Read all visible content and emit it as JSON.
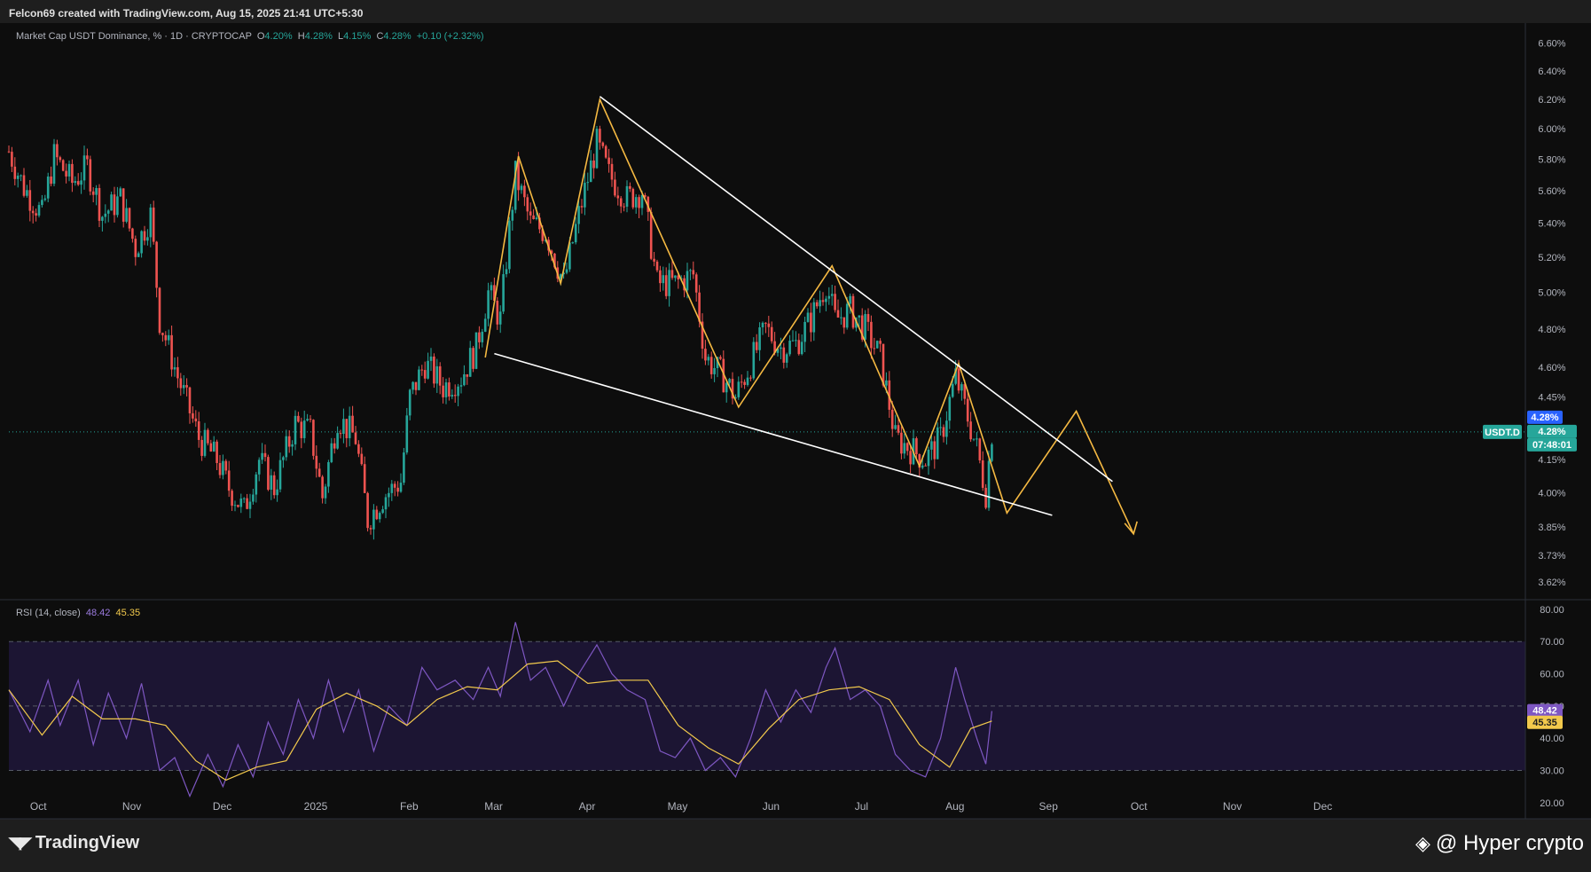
{
  "caption": "Felcon69 created with TradingView.com, Aug 15, 2025 21:41 UTC+5:30",
  "legend": {
    "title": "Market Cap USDT Dominance, % · 1D · CRYPTOCAP",
    "o_label": "O",
    "o": "4.20%",
    "h_label": "H",
    "h": "4.28%",
    "l_label": "L",
    "l": "4.15%",
    "c_label": "C",
    "c": "4.28%",
    "change": "+0.10 (+2.32%)"
  },
  "rsi_legend": {
    "title": "RSI (14, close)",
    "rsi": "48.42",
    "ma": "45.35"
  },
  "badges": {
    "price": "4.28%",
    "symbol": "USDT.D",
    "price2": "4.28%",
    "countdown": "07:48:01",
    "rsi": "48.42",
    "rsi_ma": "45.35"
  },
  "footer": {
    "brand": "TradingView",
    "credit": "@ Hyper  crypto"
  },
  "colors": {
    "up": "#26a69a",
    "down": "#ef5350",
    "rsi": "#7e57c2",
    "rsi_ma": "#f2c94c",
    "pattern": "#f5b942",
    "trend": "#ffffff",
    "bg": "#0d0d0d"
  },
  "chart_data": [
    {
      "type": "candlestick",
      "title": "Market Cap USDT Dominance, % · 1D · CRYPTOCAP",
      "xlabel": "",
      "ylabel": "",
      "x_ticks": [
        "Oct",
        "Nov",
        "Dec",
        "2025",
        "Feb",
        "Mar",
        "Apr",
        "May",
        "Jun",
        "Jul",
        "Aug",
        "Sep",
        "Oct",
        "Nov",
        "Dec"
      ],
      "y_ticks": [
        "6.60%",
        "6.40%",
        "6.20%",
        "6.00%",
        "5.80%",
        "5.60%",
        "5.40%",
        "5.20%",
        "5.00%",
        "4.80%",
        "4.60%",
        "4.45%",
        "4.15%",
        "4.00%",
        "3.85%",
        "3.73%",
        "3.62%"
      ],
      "y_scale": "log",
      "ylim": [
        3.55,
        6.75
      ],
      "grid": false,
      "last_close": 4.28,
      "close_path": [
        {
          "date": "2024-09-23",
          "close": 5.85
        },
        {
          "date": "2024-09-28",
          "close": 5.62
        },
        {
          "date": "2024-10-04",
          "close": 5.45
        },
        {
          "date": "2024-10-08",
          "close": 5.82
        },
        {
          "date": "2024-10-14",
          "close": 5.65
        },
        {
          "date": "2024-10-19",
          "close": 5.75
        },
        {
          "date": "2024-10-24",
          "close": 5.45
        },
        {
          "date": "2024-10-30",
          "close": 5.55
        },
        {
          "date": "2024-11-04",
          "close": 5.25
        },
        {
          "date": "2024-11-09",
          "close": 5.45
        },
        {
          "date": "2024-11-12",
          "close": 4.85
        },
        {
          "date": "2024-11-18",
          "close": 4.55
        },
        {
          "date": "2024-11-25",
          "close": 4.25
        },
        {
          "date": "2024-12-01",
          "close": 4.15
        },
        {
          "date": "2024-12-05",
          "close": 4.02
        },
        {
          "date": "2024-12-10",
          "close": 3.92
        },
        {
          "date": "2024-12-15",
          "close": 4.15
        },
        {
          "date": "2024-12-20",
          "close": 4.02
        },
        {
          "date": "2024-12-27",
          "close": 4.32
        },
        {
          "date": "2025-01-01",
          "close": 4.28
        },
        {
          "date": "2025-01-05",
          "close": 3.98
        },
        {
          "date": "2025-01-10",
          "close": 4.35
        },
        {
          "date": "2025-01-16",
          "close": 4.25
        },
        {
          "date": "2025-01-20",
          "close": 3.88
        },
        {
          "date": "2025-01-25",
          "close": 3.98
        },
        {
          "date": "2025-01-31",
          "close": 4.05
        },
        {
          "date": "2025-02-03",
          "close": 4.45
        },
        {
          "date": "2025-02-08",
          "close": 4.62
        },
        {
          "date": "2025-02-14",
          "close": 4.5
        },
        {
          "date": "2025-02-20",
          "close": 4.55
        },
        {
          "date": "2025-02-25",
          "close": 4.7
        },
        {
          "date": "2025-03-01",
          "close": 5.0
        },
        {
          "date": "2025-03-05",
          "close": 4.85
        },
        {
          "date": "2025-03-10",
          "close": 5.7
        },
        {
          "date": "2025-03-15",
          "close": 5.4
        },
        {
          "date": "2025-03-20",
          "close": 5.35
        },
        {
          "date": "2025-03-26",
          "close": 5.05
        },
        {
          "date": "2025-03-31",
          "close": 5.45
        },
        {
          "date": "2025-04-06",
          "close": 5.9
        },
        {
          "date": "2025-04-10",
          "close": 5.7
        },
        {
          "date": "2025-04-16",
          "close": 5.55
        },
        {
          "date": "2025-04-21",
          "close": 5.6
        },
        {
          "date": "2025-04-26",
          "close": 5.05
        },
        {
          "date": "2025-05-02",
          "close": 5.05
        },
        {
          "date": "2025-05-08",
          "close": 5.1
        },
        {
          "date": "2025-05-12",
          "close": 4.65
        },
        {
          "date": "2025-05-18",
          "close": 4.55
        },
        {
          "date": "2025-05-22",
          "close": 4.45
        },
        {
          "date": "2025-05-27",
          "close": 4.62
        },
        {
          "date": "2025-06-01",
          "close": 4.8
        },
        {
          "date": "2025-06-06",
          "close": 4.7
        },
        {
          "date": "2025-06-11",
          "close": 4.72
        },
        {
          "date": "2025-06-16",
          "close": 4.85
        },
        {
          "date": "2025-06-21",
          "close": 5.05
        },
        {
          "date": "2025-06-24",
          "close": 4.85
        },
        {
          "date": "2025-06-29",
          "close": 4.9
        },
        {
          "date": "2025-07-04",
          "close": 4.8
        },
        {
          "date": "2025-07-09",
          "close": 4.65
        },
        {
          "date": "2025-07-14",
          "close": 4.25
        },
        {
          "date": "2025-07-19",
          "close": 4.2
        },
        {
          "date": "2025-07-24",
          "close": 4.15
        },
        {
          "date": "2025-07-29",
          "close": 4.25
        },
        {
          "date": "2025-08-03",
          "close": 4.55
        },
        {
          "date": "2025-08-06",
          "close": 4.4
        },
        {
          "date": "2025-08-10",
          "close": 4.2
        },
        {
          "date": "2025-08-13",
          "close": 4.0
        },
        {
          "date": "2025-08-15",
          "close": 4.28
        }
      ],
      "annotations": {
        "pattern_zigzag": [
          {
            "date": "2025-02-28",
            "value": 4.65
          },
          {
            "date": "2025-03-11",
            "value": 5.82
          },
          {
            "date": "2025-03-25",
            "value": 5.05
          },
          {
            "date": "2025-04-07",
            "value": 6.2
          },
          {
            "date": "2025-05-23",
            "value": 4.4
          },
          {
            "date": "2025-06-23",
            "value": 5.15
          },
          {
            "date": "2025-07-22",
            "value": 4.12
          },
          {
            "date": "2025-08-04",
            "value": 4.62
          },
          {
            "date": "2025-08-20",
            "value": 3.91
          },
          {
            "date": "2025-09-12",
            "value": 4.38
          },
          {
            "date": "2025-10-01",
            "value": 3.82
          }
        ],
        "upper_trendline": [
          {
            "date": "2025-04-07",
            "value": 6.22
          },
          {
            "date": "2025-09-24",
            "value": 4.05
          }
        ],
        "lower_trendline": [
          {
            "date": "2025-03-03",
            "value": 4.67
          },
          {
            "date": "2025-09-04",
            "value": 3.9
          }
        ],
        "price_line": 4.28
      }
    },
    {
      "type": "line",
      "title": "RSI (14, close)",
      "xlabel": "",
      "ylabel": "",
      "y_ticks": [
        "80.00",
        "70.00",
        "60.00",
        "50.00",
        "40.00",
        "30.00",
        "20.00"
      ],
      "ylim": [
        15,
        83
      ],
      "bands": [
        30,
        50,
        70
      ],
      "series": [
        {
          "name": "RSI",
          "points": [
            {
              "date": "2024-09-23",
              "value": 55
            },
            {
              "date": "2024-09-30",
              "value": 42
            },
            {
              "date": "2024-10-06",
              "value": 58
            },
            {
              "date": "2024-10-10",
              "value": 44
            },
            {
              "date": "2024-10-16",
              "value": 58
            },
            {
              "date": "2024-10-21",
              "value": 38
            },
            {
              "date": "2024-10-26",
              "value": 54
            },
            {
              "date": "2024-11-01",
              "value": 40
            },
            {
              "date": "2024-11-06",
              "value": 57
            },
            {
              "date": "2024-11-12",
              "value": 30
            },
            {
              "date": "2024-11-17",
              "value": 34
            },
            {
              "date": "2024-11-22",
              "value": 22
            },
            {
              "date": "2024-11-28",
              "value": 35
            },
            {
              "date": "2024-12-03",
              "value": 25
            },
            {
              "date": "2024-12-08",
              "value": 38
            },
            {
              "date": "2024-12-13",
              "value": 28
            },
            {
              "date": "2024-12-18",
              "value": 45
            },
            {
              "date": "2024-12-23",
              "value": 35
            },
            {
              "date": "2024-12-28",
              "value": 52
            },
            {
              "date": "2025-01-02",
              "value": 40
            },
            {
              "date": "2025-01-07",
              "value": 58
            },
            {
              "date": "2025-01-12",
              "value": 42
            },
            {
              "date": "2025-01-17",
              "value": 55
            },
            {
              "date": "2025-01-22",
              "value": 36
            },
            {
              "date": "2025-01-27",
              "value": 50
            },
            {
              "date": "2025-02-02",
              "value": 44
            },
            {
              "date": "2025-02-07",
              "value": 62
            },
            {
              "date": "2025-02-12",
              "value": 55
            },
            {
              "date": "2025-02-18",
              "value": 58
            },
            {
              "date": "2025-02-24",
              "value": 52
            },
            {
              "date": "2025-03-01",
              "value": 62
            },
            {
              "date": "2025-03-05",
              "value": 53
            },
            {
              "date": "2025-03-10",
              "value": 76
            },
            {
              "date": "2025-03-15",
              "value": 58
            },
            {
              "date": "2025-03-20",
              "value": 62
            },
            {
              "date": "2025-03-26",
              "value": 50
            },
            {
              "date": "2025-03-31",
              "value": 60
            },
            {
              "date": "2025-04-06",
              "value": 69
            },
            {
              "date": "2025-04-11",
              "value": 60
            },
            {
              "date": "2025-04-16",
              "value": 55
            },
            {
              "date": "2025-04-22",
              "value": 52
            },
            {
              "date": "2025-04-27",
              "value": 36
            },
            {
              "date": "2025-05-02",
              "value": 34
            },
            {
              "date": "2025-05-07",
              "value": 40
            },
            {
              "date": "2025-05-12",
              "value": 30
            },
            {
              "date": "2025-05-17",
              "value": 34
            },
            {
              "date": "2025-05-22",
              "value": 28
            },
            {
              "date": "2025-05-27",
              "value": 40
            },
            {
              "date": "2025-06-01",
              "value": 55
            },
            {
              "date": "2025-06-06",
              "value": 45
            },
            {
              "date": "2025-06-11",
              "value": 55
            },
            {
              "date": "2025-06-16",
              "value": 48
            },
            {
              "date": "2025-06-21",
              "value": 62
            },
            {
              "date": "2025-06-24",
              "value": 68
            },
            {
              "date": "2025-06-29",
              "value": 52
            },
            {
              "date": "2025-07-04",
              "value": 55
            },
            {
              "date": "2025-07-09",
              "value": 50
            },
            {
              "date": "2025-07-14",
              "value": 35
            },
            {
              "date": "2025-07-19",
              "value": 30
            },
            {
              "date": "2025-07-24",
              "value": 28
            },
            {
              "date": "2025-07-29",
              "value": 40
            },
            {
              "date": "2025-08-03",
              "value": 62
            },
            {
              "date": "2025-08-06",
              "value": 52
            },
            {
              "date": "2025-08-10",
              "value": 40
            },
            {
              "date": "2025-08-13",
              "value": 32
            },
            {
              "date": "2025-08-15",
              "value": 48.42
            }
          ]
        },
        {
          "name": "RSI-based MA",
          "points": [
            {
              "date": "2024-09-23",
              "value": 55
            },
            {
              "date": "2024-10-04",
              "value": 41
            },
            {
              "date": "2024-10-14",
              "value": 53
            },
            {
              "date": "2024-10-24",
              "value": 46
            },
            {
              "date": "2024-11-04",
              "value": 46
            },
            {
              "date": "2024-11-14",
              "value": 44
            },
            {
              "date": "2024-11-24",
              "value": 33
            },
            {
              "date": "2024-12-04",
              "value": 27
            },
            {
              "date": "2024-12-14",
              "value": 31
            },
            {
              "date": "2024-12-24",
              "value": 33
            },
            {
              "date": "2025-01-03",
              "value": 49
            },
            {
              "date": "2025-01-13",
              "value": 54
            },
            {
              "date": "2025-01-23",
              "value": 50
            },
            {
              "date": "2025-02-02",
              "value": 44
            },
            {
              "date": "2025-02-12",
              "value": 52
            },
            {
              "date": "2025-02-22",
              "value": 56
            },
            {
              "date": "2025-03-04",
              "value": 55
            },
            {
              "date": "2025-03-14",
              "value": 63
            },
            {
              "date": "2025-03-24",
              "value": 64
            },
            {
              "date": "2025-04-03",
              "value": 57
            },
            {
              "date": "2025-04-13",
              "value": 58
            },
            {
              "date": "2025-04-23",
              "value": 58
            },
            {
              "date": "2025-05-03",
              "value": 44
            },
            {
              "date": "2025-05-13",
              "value": 37
            },
            {
              "date": "2025-05-23",
              "value": 32
            },
            {
              "date": "2025-06-02",
              "value": 43
            },
            {
              "date": "2025-06-12",
              "value": 52
            },
            {
              "date": "2025-06-22",
              "value": 55
            },
            {
              "date": "2025-07-02",
              "value": 56
            },
            {
              "date": "2025-07-12",
              "value": 52
            },
            {
              "date": "2025-07-22",
              "value": 38
            },
            {
              "date": "2025-08-01",
              "value": 31
            },
            {
              "date": "2025-08-08",
              "value": 43
            },
            {
              "date": "2025-08-15",
              "value": 45.35
            }
          ]
        }
      ]
    }
  ]
}
